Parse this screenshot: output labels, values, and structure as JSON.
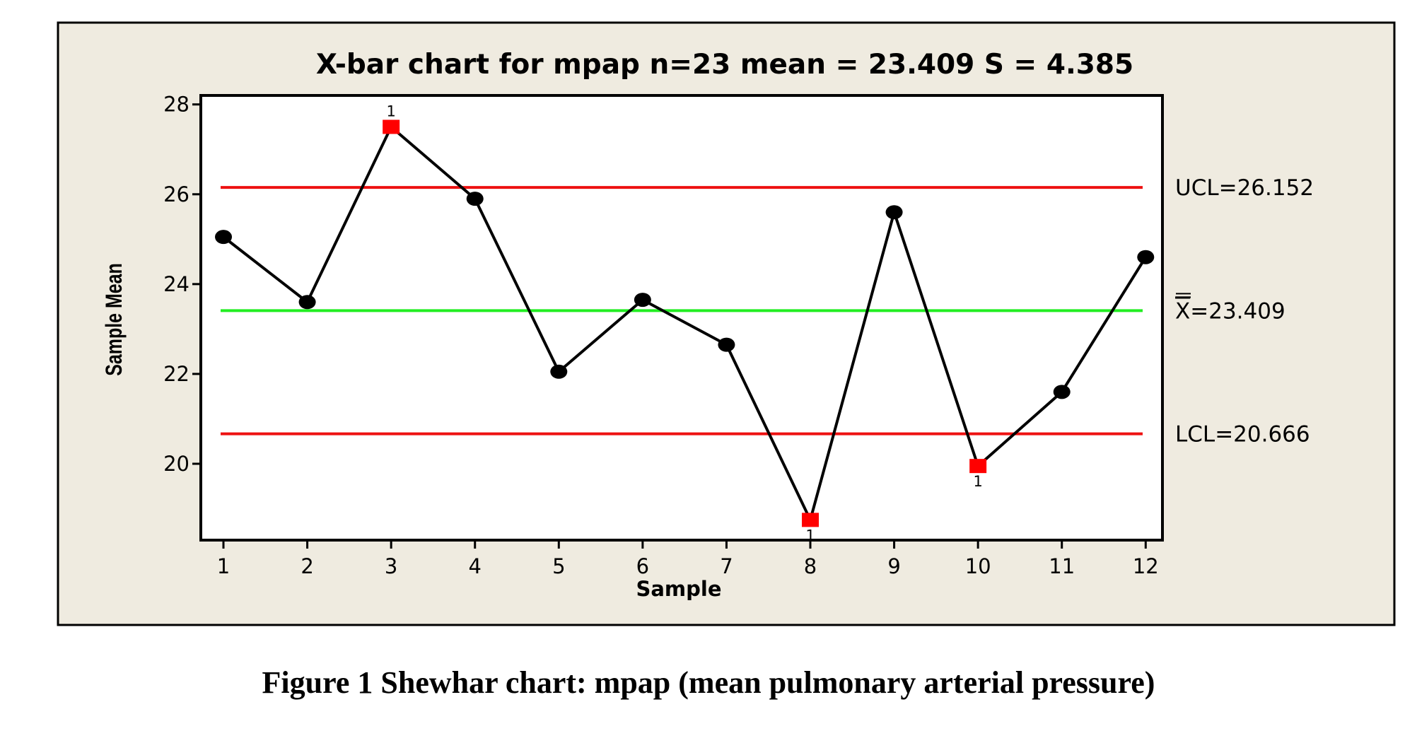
{
  "figure": {
    "caption": "Figure 1  Shewhar chart:  mpap (mean pulmonary arterial pressure)"
  },
  "chart_data": {
    "type": "line",
    "title": "X-bar chart for mpap n=23  mean = 23.409 S = 4.385",
    "xlabel": "Sample",
    "ylabel": "Sample Mean",
    "x": [
      1,
      2,
      3,
      4,
      5,
      6,
      7,
      8,
      9,
      10,
      11,
      12
    ],
    "x_tick_labels": [
      "1",
      "2",
      "3",
      "4",
      "5",
      "6",
      "7",
      "8",
      "9",
      "10",
      "11",
      "12"
    ],
    "y_ticks": [
      20,
      22,
      24,
      26,
      28
    ],
    "y_tick_labels": [
      "20",
      "22",
      "24",
      "26",
      "28"
    ],
    "xlim": [
      0.73,
      12.2
    ],
    "ylim": [
      18.3,
      28.2
    ],
    "grid": false,
    "series": [
      {
        "values": [
          25.05,
          23.6,
          27.5,
          25.9,
          22.05,
          23.65,
          22.65,
          18.75,
          25.6,
          19.95,
          21.6,
          24.6
        ],
        "color": "#000000"
      }
    ],
    "out_of_control_points": [
      {
        "x": 3,
        "flag": "1",
        "label_position": "above"
      },
      {
        "x": 8,
        "flag": "1",
        "label_position": "below"
      },
      {
        "x": 10,
        "flag": "1",
        "label_position": "below"
      }
    ],
    "reference_lines": [
      {
        "name": "UCL",
        "value": 26.152,
        "label": "UCL=26.152",
        "color": "#ee1111"
      },
      {
        "name": "center",
        "value": 23.409,
        "label_symbol": "X",
        "label_suffix": "=23.409",
        "color": "#22ee22"
      },
      {
        "name": "LCL",
        "value": 20.666,
        "label": "LCL=20.666",
        "color": "#ee1111"
      }
    ],
    "colors": {
      "panel_background": "#efebe0",
      "plot_background": "#ffffff",
      "normal_point": "#000000",
      "out_of_control_point": "#ff0000"
    }
  }
}
